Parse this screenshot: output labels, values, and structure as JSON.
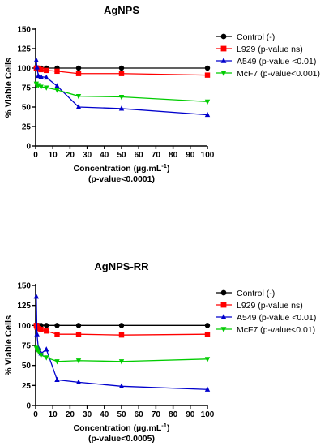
{
  "chart_data": [
    {
      "type": "line",
      "title": "AgNPS",
      "ylabel": "% Viable Cells",
      "xlabel_main": "Concentration (µg.mL",
      "xlabel_sup": "-1",
      "xlabel_close": ")",
      "xlabel_sub": "(p-value<0.0001)",
      "xlim": [
        0,
        100
      ],
      "ylim": [
        0,
        150
      ],
      "xticks": [
        "0",
        "10",
        "20",
        "30",
        "40",
        "50",
        "60",
        "70",
        "80",
        "90",
        "100"
      ],
      "yticks": [
        "0",
        "25",
        "50",
        "75",
        "100",
        "125",
        "150"
      ],
      "legend_position": "right",
      "series": [
        {
          "name": "Control (-)",
          "color": "#000000",
          "marker": "circle",
          "x": [
            0.39,
            0.78,
            1.56,
            3.125,
            6.25,
            12.5,
            25,
            50,
            100
          ],
          "y": [
            100,
            100,
            100,
            100,
            100,
            100,
            100,
            100,
            100
          ]
        },
        {
          "name": "L929 (p-value ns)",
          "color": "#ff0000",
          "marker": "square",
          "x": [
            0.39,
            0.78,
            1.56,
            3.125,
            6.25,
            12.5,
            25,
            50,
            100
          ],
          "y": [
            100,
            100,
            99,
            98,
            97,
            96,
            93,
            93,
            91
          ]
        },
        {
          "name": "A549 (p-value <0.01)",
          "color": "#0000cc",
          "marker": "triangle-up",
          "x": [
            0.39,
            0.78,
            1.56,
            3.125,
            6.25,
            12.5,
            25,
            50,
            100
          ],
          "y": [
            110,
            101,
            90,
            89,
            88,
            77,
            50,
            48,
            40
          ]
        },
        {
          "name": "McF7 (p-value<0.001)",
          "color": "#00cc00",
          "marker": "triangle-down",
          "x": [
            0.39,
            0.78,
            1.56,
            3.125,
            6.25,
            12.5,
            25,
            50,
            100
          ],
          "y": [
            80,
            78,
            78,
            76,
            75,
            72,
            64,
            63,
            57
          ]
        }
      ]
    },
    {
      "type": "line",
      "title": "AgNPS-RR",
      "ylabel": "% Viable Cells",
      "xlabel_main": "Concentration (µg.mL",
      "xlabel_sup": "-1",
      "xlabel_close": ")",
      "xlabel_sub": "(p-value<0.0005)",
      "xlim": [
        0,
        100
      ],
      "ylim": [
        0,
        150
      ],
      "xticks": [
        "0",
        "10",
        "20",
        "30",
        "40",
        "50",
        "60",
        "70",
        "80",
        "90",
        "100"
      ],
      "yticks": [
        "0",
        "25",
        "50",
        "75",
        "100",
        "125",
        "150"
      ],
      "legend_position": "right",
      "series": [
        {
          "name": "Control (-)",
          "color": "#000000",
          "marker": "circle",
          "x": [
            0.39,
            0.78,
            1.56,
            3.125,
            6.25,
            12.5,
            25,
            50,
            100
          ],
          "y": [
            100,
            100,
            100,
            100,
            100,
            100,
            100,
            100,
            100
          ]
        },
        {
          "name": "L929 (p-value ns)",
          "color": "#ff0000",
          "marker": "square",
          "x": [
            0.39,
            0.78,
            1.56,
            3.125,
            6.25,
            12.5,
            25,
            50,
            100
          ],
          "y": [
            100,
            98,
            96,
            95,
            93,
            89,
            89,
            88,
            89
          ]
        },
        {
          "name": "A549 (p-value <0.01)",
          "color": "#0000cc",
          "marker": "triangle-up",
          "x": [
            0.39,
            0.78,
            1.56,
            3.125,
            6.25,
            12.5,
            25,
            50,
            100
          ],
          "y": [
            136,
            89,
            72,
            65,
            70,
            32,
            29,
            24,
            20
          ]
        },
        {
          "name": "McF7 (p-value<0.01)",
          "color": "#00cc00",
          "marker": "triangle-down",
          "x": [
            0.39,
            0.78,
            1.56,
            3.125,
            6.25,
            12.5,
            25,
            50,
            100
          ],
          "y": [
            72,
            70,
            68,
            63,
            60,
            55,
            56,
            55,
            58
          ]
        }
      ]
    }
  ]
}
